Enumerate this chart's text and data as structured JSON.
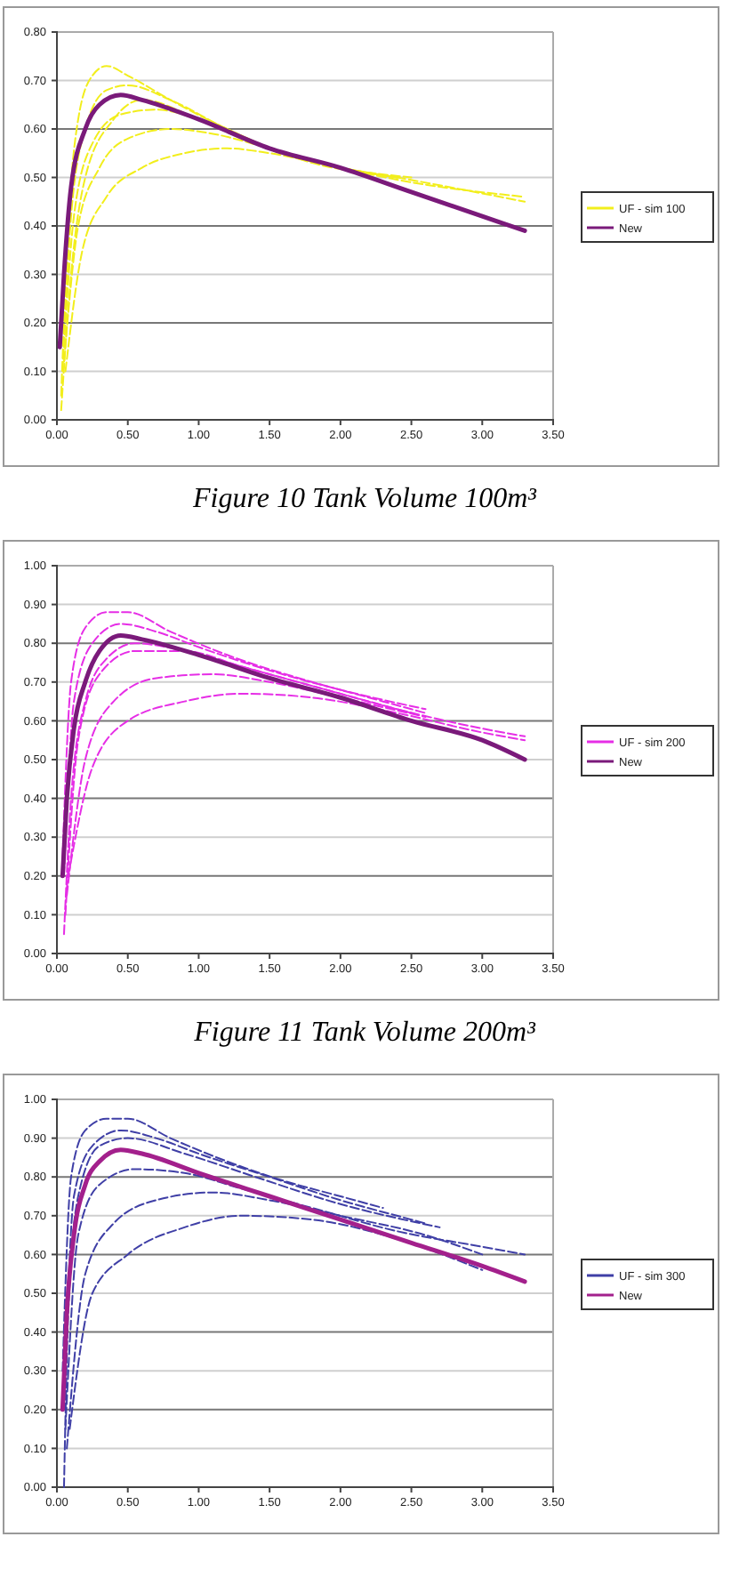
{
  "chart_data": [
    {
      "type": "line",
      "xlim": [
        0,
        3.5
      ],
      "ylim": [
        0,
        0.8
      ],
      "xticks": [
        {
          "value": 0,
          "label": "0.00"
        },
        {
          "value": 0.5,
          "label": "0.50"
        },
        {
          "value": 1,
          "label": "1.00"
        },
        {
          "value": 1.5,
          "label": "1.50"
        },
        {
          "value": 2,
          "label": "2.00"
        },
        {
          "value": 2.5,
          "label": "2.50"
        },
        {
          "value": 3,
          "label": "3.00"
        },
        {
          "value": 3.5,
          "label": "3.50"
        }
      ],
      "yticks": [
        {
          "value": 0,
          "label": "0.00"
        },
        {
          "value": 0.1,
          "label": "0.10"
        },
        {
          "value": 0.2,
          "label": "0.20"
        },
        {
          "value": 0.3,
          "label": "0.30"
        },
        {
          "value": 0.4,
          "label": "0.40"
        },
        {
          "value": 0.5,
          "label": "0.50"
        },
        {
          "value": 0.6,
          "label": "0.60"
        },
        {
          "value": 0.7,
          "label": "0.70"
        },
        {
          "value": 0.8,
          "label": "0.80"
        }
      ],
      "grid": "y",
      "legend": "right",
      "series": [
        {
          "name": "UF - sim 100",
          "color": "#f2ee1c",
          "line_style": "dashed",
          "x": [
            0.03,
            0.08,
            0.15,
            0.25,
            0.35,
            0.5,
            0.8,
            1.2,
            1.6,
            2.0,
            2.5,
            3.3
          ],
          "values": [
            0.05,
            0.4,
            0.62,
            0.71,
            0.73,
            0.71,
            0.66,
            0.6,
            0.55,
            0.52,
            0.49,
            0.46
          ]
        },
        {
          "color": "#f2ee1c",
          "line_style": "dashed",
          "x": [
            0.04,
            0.1,
            0.2,
            0.35,
            0.5,
            0.8,
            1.2,
            1.8,
            2.4,
            3.3
          ],
          "values": [
            0.1,
            0.42,
            0.6,
            0.68,
            0.69,
            0.66,
            0.6,
            0.53,
            0.5,
            0.45
          ]
        },
        {
          "color": "#f2ee1c",
          "line_style": "dashed",
          "x": [
            0.05,
            0.12,
            0.25,
            0.45,
            0.7,
            1.0,
            1.5,
            2.0,
            2.4
          ],
          "values": [
            0.15,
            0.42,
            0.57,
            0.63,
            0.64,
            0.62,
            0.56,
            0.52,
            0.5
          ]
        },
        {
          "color": "#f2ee1c",
          "line_style": "dashed",
          "x": [
            0.05,
            0.15,
            0.3,
            0.5,
            0.8,
            1.1,
            1.5,
            2.0,
            2.5
          ],
          "values": [
            0.12,
            0.4,
            0.52,
            0.58,
            0.6,
            0.59,
            0.56,
            0.52,
            0.5
          ]
        },
        {
          "color": "#f2ee1c",
          "line_style": "dashed",
          "x": [
            0.06,
            0.18,
            0.35,
            0.6,
            0.9,
            1.2,
            1.5,
            2.0,
            2.4
          ],
          "values": [
            0.1,
            0.35,
            0.46,
            0.52,
            0.55,
            0.56,
            0.55,
            0.52,
            0.5
          ]
        },
        {
          "color": "#f2ee1c",
          "line_style": "dashed",
          "x": [
            0.03,
            0.1,
            0.2,
            0.4,
            0.6,
            1.0,
            1.4,
            2.0,
            2.4
          ],
          "values": [
            0.02,
            0.3,
            0.5,
            0.62,
            0.66,
            0.62,
            0.57,
            0.52,
            0.5
          ]
        },
        {
          "name": "New",
          "color": "#7a1a7a",
          "line_style": "solid",
          "x": [
            0.02,
            0.05,
            0.1,
            0.2,
            0.3,
            0.45,
            0.6,
            1.0,
            1.5,
            2.0,
            2.5,
            3.0,
            3.3
          ],
          "values": [
            0.15,
            0.3,
            0.48,
            0.6,
            0.65,
            0.67,
            0.66,
            0.62,
            0.56,
            0.52,
            0.47,
            0.42,
            0.39
          ]
        }
      ],
      "annotations": [
        "Figure 10 Tank Volume 100m³"
      ]
    },
    {
      "type": "line",
      "xlim": [
        0,
        3.5
      ],
      "ylim": [
        0,
        1
      ],
      "xticks": [
        {
          "value": 0,
          "label": "0.00"
        },
        {
          "value": 0.5,
          "label": "0.50"
        },
        {
          "value": 1,
          "label": "1.00"
        },
        {
          "value": 1.5,
          "label": "1.50"
        },
        {
          "value": 2,
          "label": "2.00"
        },
        {
          "value": 2.5,
          "label": "2.50"
        },
        {
          "value": 3,
          "label": "3.00"
        },
        {
          "value": 3.5,
          "label": "3.50"
        }
      ],
      "yticks": [
        {
          "value": 0,
          "label": "0.00"
        },
        {
          "value": 0.1,
          "label": "0.10"
        },
        {
          "value": 0.2,
          "label": "0.20"
        },
        {
          "value": 0.3,
          "label": "0.30"
        },
        {
          "value": 0.4,
          "label": "0.40"
        },
        {
          "value": 0.5,
          "label": "0.50"
        },
        {
          "value": 0.6,
          "label": "0.60"
        },
        {
          "value": 0.7,
          "label": "0.70"
        },
        {
          "value": 0.8,
          "label": "0.80"
        },
        {
          "value": 0.9,
          "label": "0.90"
        },
        {
          "value": 1,
          "label": "1.00"
        }
      ],
      "grid": "y",
      "legend": "right",
      "series": [
        {
          "name": "UF - sim 200",
          "color": "#e62ee6",
          "line_style": "dashed",
          "x": [
            0.04,
            0.1,
            0.2,
            0.35,
            0.5,
            0.8,
            1.2,
            1.8,
            2.2,
            2.6
          ],
          "values": [
            0.25,
            0.7,
            0.84,
            0.88,
            0.88,
            0.83,
            0.77,
            0.7,
            0.66,
            0.62
          ]
        },
        {
          "color": "#e62ee6",
          "line_style": "dashed",
          "x": [
            0.05,
            0.12,
            0.25,
            0.45,
            0.7,
            1.0,
            1.5,
            2.0,
            2.6
          ],
          "values": [
            0.2,
            0.65,
            0.8,
            0.85,
            0.83,
            0.79,
            0.73,
            0.68,
            0.63
          ]
        },
        {
          "color": "#e62ee6",
          "line_style": "dashed",
          "x": [
            0.06,
            0.15,
            0.3,
            0.55,
            0.9,
            1.3,
            1.8,
            2.4,
            3.0,
            3.3
          ],
          "values": [
            0.1,
            0.55,
            0.72,
            0.78,
            0.78,
            0.74,
            0.69,
            0.63,
            0.58,
            0.56
          ]
        },
        {
          "color": "#e62ee6",
          "line_style": "dashed",
          "x": [
            0.07,
            0.2,
            0.4,
            0.7,
            1.1,
            1.5,
            2.0,
            2.6
          ],
          "values": [
            0.15,
            0.5,
            0.65,
            0.71,
            0.72,
            0.7,
            0.66,
            0.61
          ]
        },
        {
          "color": "#e62ee6",
          "line_style": "dashed",
          "x": [
            0.08,
            0.25,
            0.5,
            0.9,
            1.3,
            1.8,
            2.4,
            3.0,
            3.3
          ],
          "values": [
            0.2,
            0.48,
            0.6,
            0.65,
            0.67,
            0.66,
            0.62,
            0.57,
            0.55
          ]
        },
        {
          "color": "#e62ee6",
          "line_style": "dashed",
          "x": [
            0.05,
            0.1,
            0.2,
            0.35,
            0.55,
            0.9,
            1.4,
            2.0,
            2.5
          ],
          "values": [
            0.05,
            0.4,
            0.65,
            0.76,
            0.8,
            0.78,
            0.73,
            0.67,
            0.62
          ]
        },
        {
          "name": "New",
          "color": "#7a1a7a",
          "line_style": "solid",
          "x": [
            0.04,
            0.07,
            0.12,
            0.2,
            0.3,
            0.45,
            0.6,
            1.0,
            1.5,
            2.0,
            2.5,
            3.0,
            3.3
          ],
          "values": [
            0.2,
            0.4,
            0.58,
            0.7,
            0.78,
            0.82,
            0.81,
            0.77,
            0.71,
            0.66,
            0.6,
            0.55,
            0.5
          ]
        }
      ],
      "annotations": [
        "Figure 11 Tank Volume 200m³"
      ]
    },
    {
      "type": "line",
      "xlim": [
        0,
        3.5
      ],
      "ylim": [
        0,
        1
      ],
      "xticks": [
        {
          "value": 0,
          "label": "0.00"
        },
        {
          "value": 0.5,
          "label": "0.50"
        },
        {
          "value": 1,
          "label": "1.00"
        },
        {
          "value": 1.5,
          "label": "1.50"
        },
        {
          "value": 2,
          "label": "2.00"
        },
        {
          "value": 2.5,
          "label": "2.50"
        },
        {
          "value": 3,
          "label": "3.00"
        },
        {
          "value": 3.5,
          "label": "3.50"
        }
      ],
      "yticks": [
        {
          "value": 0,
          "label": "0.00"
        },
        {
          "value": 0.1,
          "label": "0.10"
        },
        {
          "value": 0.2,
          "label": "0.20"
        },
        {
          "value": 0.3,
          "label": "0.30"
        },
        {
          "value": 0.4,
          "label": "0.40"
        },
        {
          "value": 0.5,
          "label": "0.50"
        },
        {
          "value": 0.6,
          "label": "0.60"
        },
        {
          "value": 0.7,
          "label": "0.70"
        },
        {
          "value": 0.8,
          "label": "0.80"
        },
        {
          "value": 0.9,
          "label": "0.90"
        },
        {
          "value": 1,
          "label": "1.00"
        }
      ],
      "grid": "y",
      "legend": "right",
      "series": [
        {
          "name": "UF - sim 300",
          "color": "#3f3fa6",
          "line_style": "dashed",
          "x": [
            0.04,
            0.1,
            0.2,
            0.35,
            0.5,
            0.8,
            1.2,
            1.6,
            2.0,
            2.3
          ],
          "values": [
            0.3,
            0.8,
            0.92,
            0.95,
            0.95,
            0.9,
            0.84,
            0.79,
            0.75,
            0.72
          ]
        },
        {
          "color": "#3f3fa6",
          "line_style": "dashed",
          "x": [
            0.05,
            0.12,
            0.25,
            0.45,
            0.7,
            1.0,
            1.5,
            2.0,
            2.5,
            2.6
          ],
          "values": [
            0.2,
            0.75,
            0.88,
            0.92,
            0.9,
            0.86,
            0.8,
            0.74,
            0.69,
            0.68
          ]
        },
        {
          "color": "#3f3fa6",
          "line_style": "dashed",
          "x": [
            0.06,
            0.15,
            0.3,
            0.55,
            0.9,
            1.3,
            1.8,
            2.4,
            3.0,
            3.3
          ],
          "values": [
            0.15,
            0.65,
            0.78,
            0.82,
            0.81,
            0.77,
            0.72,
            0.66,
            0.62,
            0.6
          ]
        },
        {
          "color": "#3f3fa6",
          "line_style": "dashed",
          "x": [
            0.07,
            0.2,
            0.4,
            0.7,
            1.1,
            1.5,
            2.0,
            2.6,
            3.0
          ],
          "values": [
            0.1,
            0.55,
            0.68,
            0.74,
            0.76,
            0.74,
            0.7,
            0.65,
            0.6
          ]
        },
        {
          "color": "#3f3fa6",
          "line_style": "dashed",
          "x": [
            0.09,
            0.25,
            0.5,
            0.9,
            1.3,
            1.8,
            2.4,
            3.0
          ],
          "values": [
            0.15,
            0.5,
            0.6,
            0.67,
            0.7,
            0.69,
            0.64,
            0.56
          ]
        },
        {
          "color": "#3f3fa6",
          "line_style": "dashed",
          "x": [
            0.05,
            0.08,
            0.15,
            0.3,
            0.5,
            0.9,
            1.4,
            2.0,
            2.7
          ],
          "values": [
            0.0,
            0.45,
            0.75,
            0.88,
            0.9,
            0.86,
            0.8,
            0.73,
            0.67
          ]
        },
        {
          "name": "New",
          "color": "#a3208c",
          "line_style": "solid",
          "x": [
            0.04,
            0.07,
            0.12,
            0.2,
            0.3,
            0.45,
            0.6,
            1.0,
            1.5,
            2.0,
            2.5,
            3.0,
            3.3
          ],
          "values": [
            0.2,
            0.45,
            0.65,
            0.78,
            0.84,
            0.87,
            0.86,
            0.81,
            0.75,
            0.69,
            0.63,
            0.57,
            0.53
          ]
        }
      ]
    }
  ]
}
